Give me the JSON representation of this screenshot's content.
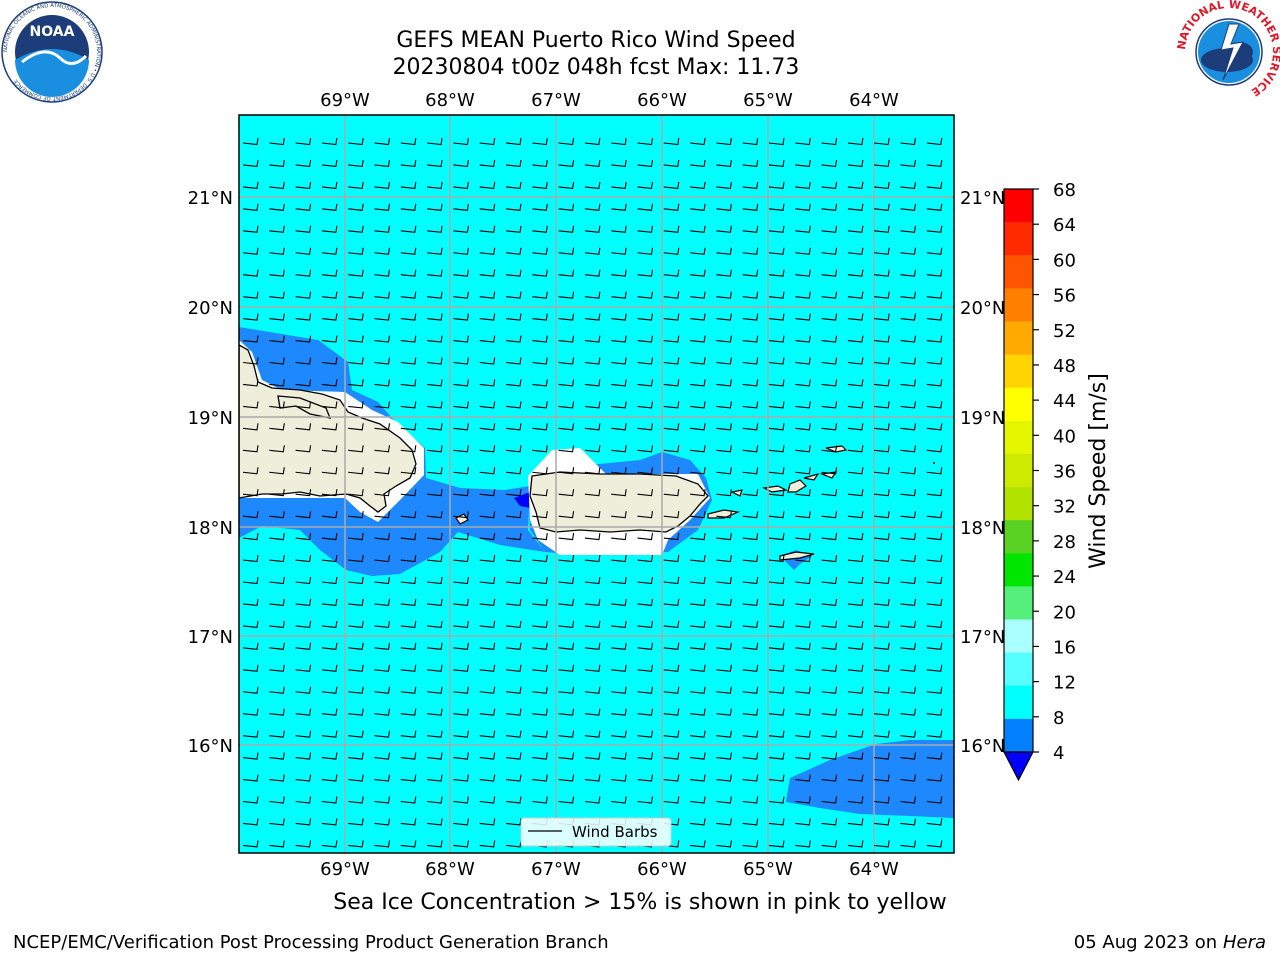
{
  "title": "GEFS MEAN Puerto Rico Wind Speed",
  "subtitle": "20230804 t00z 048h fcst   Max: 11.73",
  "lon_labels": [
    "69°W",
    "68°W",
    "67°W",
    "66°W",
    "65°W",
    "64°W"
  ],
  "lat_labels": [
    "21°N",
    "20°N",
    "19°N",
    "18°N",
    "17°N",
    "16°N"
  ],
  "legend_label": "Wind Barbs",
  "colorbar": {
    "label": "Wind Speed [m/s]",
    "ticks": [
      "68",
      "64",
      "60",
      "56",
      "52",
      "48",
      "44",
      "40",
      "36",
      "32",
      "28",
      "24",
      "20",
      "16",
      "12",
      "8",
      "4"
    ],
    "colors": [
      "#ff0000",
      "#ff2a00",
      "#ff5500",
      "#ff8000",
      "#ffaa00",
      "#ffd400",
      "#ffff00",
      "#e6f500",
      "#cdeb00",
      "#b2e200",
      "#5ad224",
      "#00e600",
      "#55f07c",
      "#aaffff",
      "#55ffff",
      "#00ffff",
      "#0080ff"
    ],
    "below_color": "#0000ff"
  },
  "caption": "Sea Ice Concentration > 15% is shown in pink to yellow",
  "footer_left": "NCEP/EMC/Verification Post Processing Product Generation Branch",
  "footer_date": "05 Aug 2023 on",
  "footer_machine": "Hera",
  "logos": {
    "noaa_text": "NOAA",
    "noaa_ring": "NATIONAL OCEANIC AND ATMOSPHERIC ADMINISTRATION • U.S. DEPARTMENT OF COMMERCE",
    "nws_ring": "NATIONAL WEATHER SERVICE"
  },
  "colors": {
    "ocean": "#00ffff",
    "band": "#1e88ff",
    "deep": "#0000ff",
    "land": "#efeedb"
  }
}
